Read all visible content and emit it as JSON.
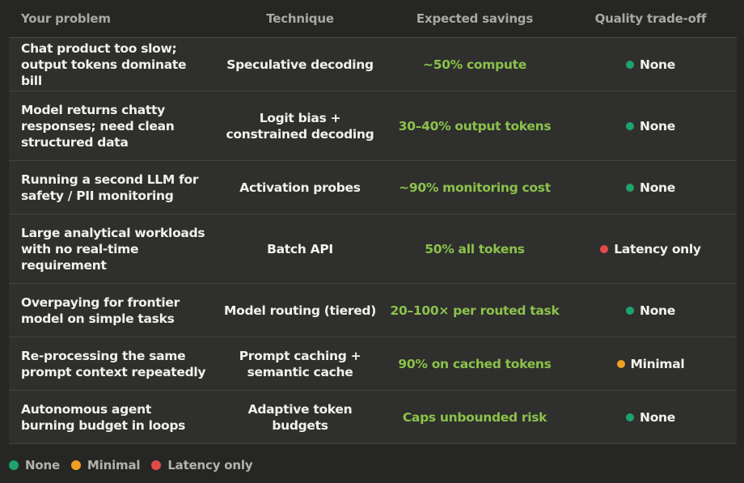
{
  "header": {
    "problem": "Your problem",
    "technique": "Technique",
    "savings": "Expected savings",
    "tradeoff": "Quality trade-off"
  },
  "rows": [
    {
      "problem": "Chat product too slow; output tokens dominate bill",
      "technique": "Speculative decoding",
      "savings": "~50% compute",
      "tradeoff": "None",
      "tradeoff_color": "#1fa36b"
    },
    {
      "problem": "Model returns chatty responses; need clean structured data",
      "technique": "Logit bias + constrained decoding",
      "savings": "30–40% output tokens",
      "tradeoff": "None",
      "tradeoff_color": "#1fa36b"
    },
    {
      "problem": "Running a second LLM for safety / PII monitoring",
      "technique": "Activation probes",
      "savings": "~90% monitoring cost",
      "tradeoff": "None",
      "tradeoff_color": "#1fa36b"
    },
    {
      "problem": "Large analytical workloads with no real-time requirement",
      "technique": "Batch API",
      "savings": "50% all tokens",
      "tradeoff": "Latency only",
      "tradeoff_color": "#e24a4a"
    },
    {
      "problem": "Overpaying for frontier model on simple tasks",
      "technique": "Model routing (tiered)",
      "savings": "20–100× per routed task",
      "tradeoff": "None",
      "tradeoff_color": "#1fa36b"
    },
    {
      "problem": "Re-processing the same prompt context repeatedly",
      "technique": "Prompt caching + semantic cache",
      "savings": "90% on cached tokens",
      "tradeoff": "Minimal",
      "tradeoff_color": "#f0a020"
    },
    {
      "problem": "Autonomous agent burning budget in loops",
      "technique": "Adaptive token budgets",
      "savings": "Caps unbounded risk",
      "tradeoff": "None",
      "tradeoff_color": "#1fa36b"
    }
  ],
  "legend": [
    {
      "label": "None",
      "color": "#1fa36b"
    },
    {
      "label": "Minimal",
      "color": "#f0a020"
    },
    {
      "label": "Latency only",
      "color": "#e24a4a"
    }
  ]
}
